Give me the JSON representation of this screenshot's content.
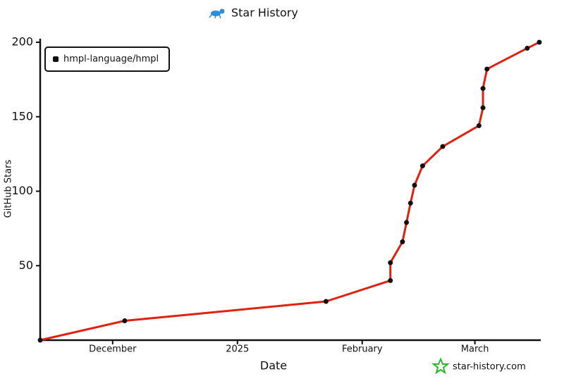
{
  "chart_data": {
    "type": "line",
    "title": "Star History",
    "x_label": "Date",
    "y_label": "GitHub Stars",
    "watermark": "star-history.com",
    "x": [
      "2024-11-13",
      "2024-12-04",
      "2025-01-23",
      "2025-02-08",
      "2025-02-08",
      "2025-02-11",
      "2025-02-12",
      "2025-02-13",
      "2025-02-14",
      "2025-02-16",
      "2025-02-21",
      "2025-03-02",
      "2025-03-03",
      "2025-03-03",
      "2025-03-04",
      "2025-03-14",
      "2025-03-17"
    ],
    "series": [
      {
        "name": "hmpl-language/hmpl",
        "color": "#dd2211",
        "values": [
          0,
          13,
          26,
          40,
          52,
          66,
          79,
          92,
          104,
          117,
          130,
          144,
          156,
          169,
          182,
          196,
          200
        ]
      }
    ],
    "xlim": [
      "2024-11-13",
      "2025-03-17"
    ],
    "xticks": [
      {
        "value": "2024-12-01",
        "label": "December"
      },
      {
        "value": "2025-01-01",
        "label": "2025"
      },
      {
        "value": "2025-02-01",
        "label": "February"
      },
      {
        "value": "2025-03-01",
        "label": "March"
      }
    ],
    "ylim": [
      0,
      200
    ],
    "yticks": [
      50,
      100,
      150,
      200
    ],
    "legend": "top-left"
  }
}
